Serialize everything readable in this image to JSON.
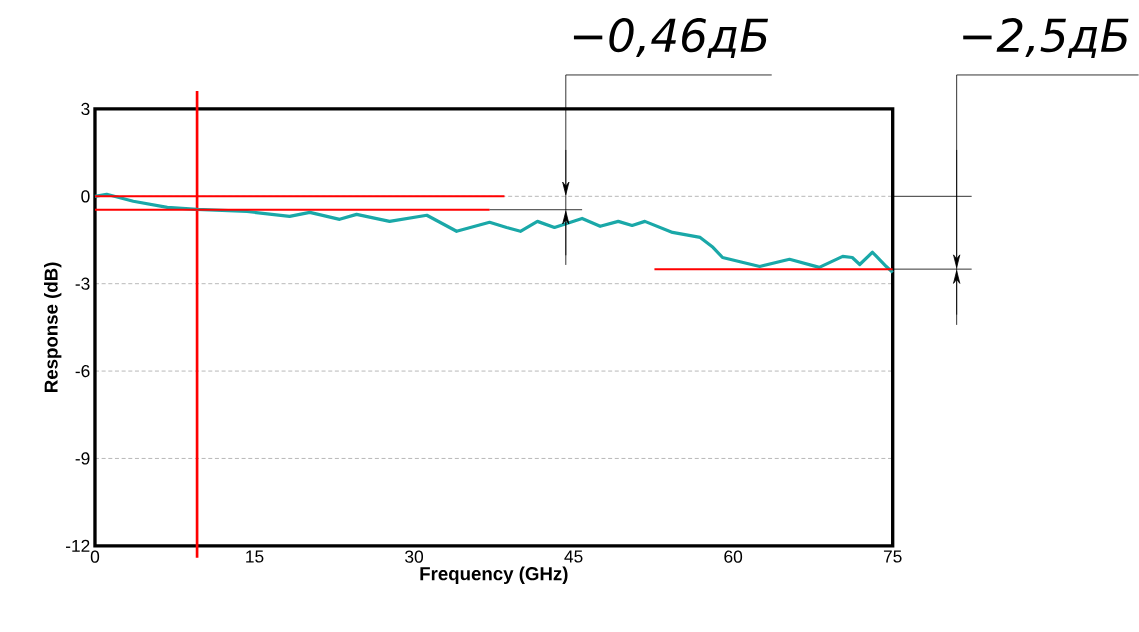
{
  "chart_data": {
    "type": "line",
    "xlabel": "Frequency (GHz)",
    "ylabel": "Response (dB)",
    "xlim": [
      0,
      75
    ],
    "ylim": [
      -12,
      3
    ],
    "xticks": [
      0,
      15,
      30,
      45,
      60,
      75
    ],
    "yticks": [
      -12,
      -9,
      -6,
      -3,
      0,
      3
    ],
    "grid": "y",
    "marker": "none",
    "line_style": "solid",
    "series": [
      {
        "color": "#1aa8a8",
        "x": [
          0,
          1.1,
          3.6,
          6.8,
          9.6,
          14.3,
          18.3,
          20.2,
          23.0,
          24.6,
          27.7,
          31.2,
          34.0,
          37.1,
          38.7,
          40.0,
          41.6,
          43.2,
          45.8,
          47.5,
          49.2,
          50.5,
          51.7,
          54.3,
          56.9,
          58.1,
          59.0,
          62.5,
          65.3,
          68.1,
          70.3,
          71.2,
          71.9,
          73.1,
          74.4,
          75
        ],
        "values": [
          0,
          0.07,
          -0.17,
          -0.38,
          -0.45,
          -0.52,
          -0.69,
          -0.55,
          -0.79,
          -0.62,
          -0.86,
          -0.65,
          -1.2,
          -0.89,
          -1.07,
          -1.2,
          -0.86,
          -1.07,
          -0.76,
          -1.03,
          -0.86,
          -1.0,
          -0.86,
          -1.24,
          -1.41,
          -1.75,
          -2.1,
          -2.41,
          -2.16,
          -2.44,
          -2.06,
          -2.1,
          -2.34,
          -1.92,
          -2.41,
          -2.61
        ]
      },
      {
        "type": "line",
        "color": "#ff0000",
        "x": [
          0,
          38.5
        ],
        "values": [
          0,
          0
        ]
      },
      {
        "type": "line",
        "color": "#ff0000",
        "x": [
          0,
          37.1
        ],
        "values": [
          -0.46,
          -0.46
        ]
      },
      {
        "type": "line",
        "color": "#ff0000",
        "x": [
          52.6,
          75
        ],
        "values": [
          -2.5,
          -2.5
        ]
      },
      {
        "type": "line",
        "color": "#000000",
        "x": [
          37.1,
          45.8
        ],
        "values": [
          -0.46,
          -0.46
        ]
      }
    ],
    "ref_lines": [
      {
        "axis": "x",
        "value": 9.6,
        "color": "#ff0000"
      }
    ],
    "annotations": [
      "−0,46дБ",
      "−2,5дБ"
    ]
  }
}
